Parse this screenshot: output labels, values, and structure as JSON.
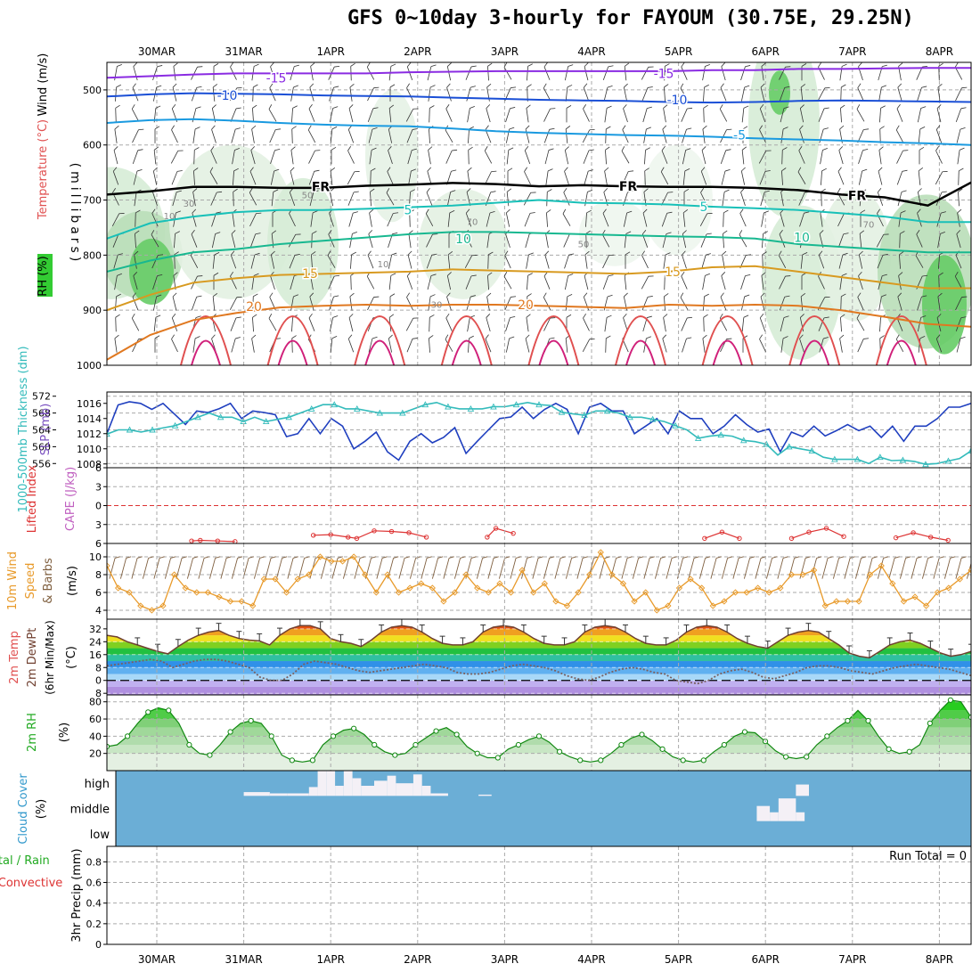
{
  "title": "GFS 0~10day 3-hourly for FAYOUM (30.75E, 29.25N)",
  "dates": [
    "30MAR",
    "31MAR",
    "1APR",
    "2APR",
    "3APR",
    "4APR",
    "5APR",
    "6APR",
    "7APR",
    "8APR"
  ],
  "colors": {
    "wind_rh_green": "#33cc33",
    "cloud_blue": "#6baed6",
    "slp": "#1f3fbf",
    "thickness": "#33bbbb",
    "li": "#dd3333",
    "wind10": "#e89a2a",
    "barb": "#806040",
    "rh2m": "#22cc22",
    "dew": "#7a6060"
  },
  "chart_data": [
    {
      "type": "contour",
      "panel": "upper-air",
      "ylabel_parts": [
        "RH (%)",
        "Temperature (°C)",
        "Wind (m/s)"
      ],
      "yaxis_label": "(millibars)",
      "yticks": [
        500,
        600,
        700,
        800,
        900,
        1000
      ],
      "ylim": [
        450,
        1000
      ],
      "isotherm_labels": [
        "-15",
        "-10",
        "-5",
        "FR",
        "5",
        "10",
        "15",
        "20"
      ],
      "rh_labels": [
        "10",
        "30",
        "50",
        "70"
      ],
      "isotherms": [
        {
          "label": "-15",
          "color": "#8a2be2",
          "p": [
            478,
            475,
            472,
            470,
            470,
            470,
            470,
            468,
            467,
            466,
            466,
            466,
            466,
            466,
            464,
            464,
            462,
            462,
            461,
            460,
            460
          ]
        },
        {
          "label": "-10",
          "color": "#1a4fd6",
          "p": [
            512,
            508,
            506,
            507,
            508,
            510,
            511,
            512,
            514,
            516,
            518,
            519,
            520,
            522,
            523,
            522,
            520,
            519,
            520,
            521,
            522
          ]
        },
        {
          "label": "-5",
          "color": "#1a9ae0",
          "p": [
            560,
            555,
            553,
            556,
            560,
            563,
            565,
            566,
            570,
            575,
            578,
            580,
            582,
            583,
            585,
            588,
            590,
            592,
            595,
            597,
            600
          ]
        },
        {
          "label": "FR",
          "color": "#000000",
          "p": [
            690,
            684,
            676,
            676,
            678,
            678,
            674,
            672,
            669,
            671,
            675,
            673,
            675,
            676,
            676,
            678,
            682,
            690,
            695,
            710,
            668
          ]
        },
        {
          "label": "5",
          "color": "#18c0b8",
          "p": [
            770,
            742,
            730,
            722,
            718,
            718,
            716,
            713,
            710,
            705,
            700,
            705,
            706,
            708,
            712,
            715,
            718,
            724,
            730,
            740,
            740
          ]
        },
        {
          "label": "10",
          "color": "#18b890",
          "p": [
            830,
            810,
            795,
            789,
            780,
            774,
            768,
            762,
            758,
            758,
            760,
            762,
            764,
            766,
            767,
            770,
            780,
            785,
            790,
            795,
            795
          ]
        },
        {
          "label": "15",
          "color": "#d89a20",
          "p": [
            900,
            872,
            850,
            842,
            836,
            834,
            832,
            830,
            826,
            828,
            830,
            832,
            834,
            830,
            822,
            820,
            830,
            840,
            850,
            860,
            860
          ]
        },
        {
          "label": "20",
          "color": "#e07820",
          "p": [
            990,
            945,
            918,
            905,
            895,
            892,
            890,
            892,
            890,
            890,
            892,
            894,
            896,
            890,
            892,
            890,
            892,
            900,
            912,
            925,
            930
          ]
        }
      ]
    },
    {
      "type": "line",
      "panel": "slp-thickness",
      "ylabel_parts": [
        "1000-500mb Thickness (dm)",
        "SLP (mb)"
      ],
      "left_yticks": [
        556,
        560,
        564,
        568,
        572
      ],
      "right_yticks": [
        1008,
        1010,
        1012,
        1014,
        1016
      ],
      "series": [
        {
          "name": "SLP (mb)",
          "axis": "right",
          "values": [
            1012,
            1015.8,
            1016.2,
            1016,
            1015.2,
            1016,
            1014.6,
            1013.2,
            1015,
            1014.8,
            1015.3,
            1016,
            1014,
            1015,
            1014.8,
            1014.5,
            1011.6,
            1012,
            1014,
            1012,
            1014,
            1013,
            1010,
            1011,
            1012.2,
            1009.6,
            1008.5,
            1011,
            1012,
            1010.8,
            1011.5,
            1012.8,
            1009.4,
            1011,
            1012.5,
            1014,
            1014.2,
            1015.5,
            1014,
            1015.2,
            1016,
            1015.2,
            1012,
            1015.5,
            1016,
            1015,
            1015,
            1012,
            1013,
            1014,
            1012,
            1015,
            1014,
            1014,
            1012,
            1013,
            1014.5,
            1013.2,
            1012.2,
            1012.6,
            1009.6,
            1012.2,
            1011.6,
            1013,
            1011.7,
            1012.4,
            1013.2,
            1012.4,
            1013,
            1011.5,
            1013,
            1011,
            1013,
            1013,
            1014,
            1015.5,
            1015.5,
            1016
          ]
        },
        {
          "name": "1000-500mb Thickness (dm)",
          "axis": "left",
          "values": [
            563,
            564,
            564,
            563.5,
            564,
            564.5,
            565,
            566,
            567,
            568,
            567,
            567,
            566,
            567,
            566,
            566.5,
            567,
            568,
            569,
            570,
            570,
            569,
            569,
            568.5,
            568,
            568,
            568,
            569,
            570,
            570.5,
            569.5,
            569,
            569,
            569,
            569.5,
            569.5,
            570,
            570.5,
            570,
            569.8,
            568.2,
            567.8,
            567.5,
            568.5,
            568.5,
            568,
            567,
            567,
            566.5,
            566,
            565,
            564,
            562,
            562.5,
            562.8,
            562.5,
            561.5,
            561.2,
            560.6,
            558,
            560,
            559.5,
            559,
            557.5,
            557,
            557,
            557,
            556,
            557.5,
            556.7,
            556.8,
            556.5,
            555.8,
            556,
            556.6,
            557.2,
            559
          ]
        }
      ]
    },
    {
      "type": "line",
      "panel": "lifted-index-cape",
      "ylabel_parts": [
        "Lifted Index",
        "CAPE (J/kg)"
      ],
      "yticks": [
        -6,
        -3,
        0,
        3,
        6
      ],
      "reference_line": 0,
      "series": [
        {
          "name": "Lifted Index",
          "segments": [
            [
              [
                0.9,
                5.6
              ],
              [
                1.0,
                5.5
              ],
              [
                1.2,
                5.6
              ],
              [
                1.4,
                5.7
              ]
            ],
            [
              [
                2.3,
                4.7
              ],
              [
                2.5,
                4.6
              ],
              [
                2.7,
                5.0
              ],
              [
                2.8,
                5.2
              ],
              [
                3.0,
                4.0
              ],
              [
                3.2,
                4.1
              ],
              [
                3.4,
                4.3
              ],
              [
                3.6,
                5.0
              ]
            ],
            [
              [
                4.3,
                5.0
              ],
              [
                4.4,
                3.6
              ],
              [
                4.6,
                4.4
              ]
            ],
            [
              [
                6.8,
                5.2
              ],
              [
                7.0,
                4.2
              ],
              [
                7.2,
                5.2
              ]
            ],
            [
              [
                7.8,
                5.2
              ],
              [
                8.0,
                4.2
              ],
              [
                8.2,
                3.6
              ],
              [
                8.4,
                4.9
              ]
            ],
            [
              [
                9.0,
                5.1
              ],
              [
                9.2,
                4.3
              ],
              [
                9.4,
                5.0
              ],
              [
                9.6,
                5.5
              ]
            ]
          ]
        }
      ]
    },
    {
      "type": "line",
      "panel": "10m-wind",
      "ylabel_parts": [
        "10m Wind",
        "Speed",
        "& Barbs",
        "(m/s)"
      ],
      "yticks": [
        4,
        6,
        8,
        10
      ],
      "series": [
        {
          "name": "10m Wind Speed",
          "values": [
            9,
            6.5,
            6,
            4.5,
            4,
            4.5,
            8,
            6.5,
            6,
            6,
            5.5,
            5,
            5,
            4.5,
            7.5,
            7.5,
            6,
            7.5,
            8,
            10,
            9.5,
            9.5,
            10,
            8,
            6,
            8,
            6,
            6.5,
            7,
            6.5,
            5,
            6,
            8,
            6.5,
            6,
            7,
            6,
            8.5,
            6,
            7,
            5,
            4.5,
            6,
            8,
            10.5,
            8,
            7,
            5,
            6,
            4,
            4.5,
            6.5,
            7.5,
            6.5,
            4.5,
            5,
            6,
            6,
            6.5,
            6,
            6.5,
            8,
            8,
            8.5,
            4.5,
            5,
            5,
            5,
            8,
            9,
            7,
            5,
            5.5,
            4.5,
            6,
            6.5,
            7.5,
            8.5
          ]
        }
      ]
    },
    {
      "type": "line",
      "panel": "2m-temp",
      "ylabel_parts": [
        "2m Temp",
        "2m DewPt",
        "(6hr Min/Max)",
        "(°C)"
      ],
      "yticks": [
        -8,
        0,
        8,
        16,
        24,
        32
      ],
      "series": [
        {
          "name": "2m Temp",
          "values": [
            28,
            27,
            24,
            22,
            20,
            18,
            16.5,
            21,
            25,
            28,
            30,
            31,
            28,
            26,
            25,
            24.5,
            22,
            28,
            32,
            34,
            34,
            32,
            26,
            24,
            23,
            21,
            25,
            30,
            33,
            34,
            33,
            30,
            26,
            23,
            22,
            22,
            24,
            30,
            33,
            34,
            33,
            30,
            26,
            23,
            22,
            22,
            24,
            30,
            33,
            34,
            33,
            30,
            26,
            23,
            22,
            22,
            25,
            30,
            33,
            34,
            33,
            30,
            26,
            23,
            21,
            20,
            24,
            28,
            30,
            31,
            30,
            26,
            22,
            17,
            15,
            14,
            18,
            22,
            24,
            25,
            23,
            20,
            17,
            15,
            16,
            18
          ]
        },
        {
          "name": "2m DewPt",
          "values": [
            9,
            10,
            11,
            12,
            13,
            12,
            8,
            10,
            12,
            13,
            13,
            12,
            10,
            8,
            2,
            0,
            0,
            4,
            10,
            12,
            11,
            10,
            8,
            6,
            5,
            6,
            7,
            8,
            9,
            10,
            9,
            8,
            5,
            4,
            4,
            5,
            7,
            9,
            10,
            9,
            8,
            6,
            3,
            1,
            0,
            2,
            5,
            7,
            8,
            7,
            5,
            4,
            0,
            -1,
            -2,
            0,
            4,
            6,
            7,
            5,
            2,
            1,
            3,
            5,
            8,
            9,
            9,
            8,
            6,
            5,
            4,
            6,
            8,
            9,
            10,
            9,
            8,
            7,
            5,
            3
          ]
        }
      ]
    },
    {
      "type": "area",
      "panel": "2m-rh",
      "ylabel_parts": [
        "2m RH",
        "(%)"
      ],
      "yticks": [
        20,
        40,
        60,
        80
      ],
      "series": [
        {
          "name": "2m RH",
          "values": [
            28,
            30,
            40,
            55,
            68,
            73,
            70,
            55,
            30,
            20,
            18,
            30,
            45,
            55,
            58,
            55,
            40,
            18,
            12,
            10,
            12,
            30,
            40,
            47,
            49,
            42,
            30,
            22,
            18,
            20,
            30,
            38,
            46,
            50,
            42,
            28,
            20,
            15,
            15,
            25,
            30,
            36,
            40,
            33,
            22,
            16,
            12,
            10,
            12,
            20,
            30,
            38,
            42,
            35,
            25,
            16,
            12,
            10,
            12,
            22,
            30,
            40,
            45,
            44,
            34,
            23,
            16,
            14,
            16,
            30,
            40,
            50,
            58,
            70,
            58,
            40,
            25,
            20,
            22,
            30,
            55,
            70,
            82,
            80,
            62
          ]
        }
      ]
    },
    {
      "type": "bar",
      "panel": "cloud-cover",
      "ylabel_parts": [
        "Cloud Cover",
        "(%)"
      ],
      "ytick_labels": [
        "high",
        "middle",
        "low"
      ],
      "series": [
        {
          "name": "high",
          "segments": [
            [
              1.5,
              1.8,
              0.15
            ],
            [
              1.8,
              2.0,
              0.1
            ],
            [
              2.0,
              2.25,
              0.1
            ],
            [
              2.25,
              2.35,
              0.35
            ],
            [
              2.35,
              2.45,
              1
            ],
            [
              2.45,
              2.55,
              1
            ],
            [
              2.55,
              2.65,
              0.4
            ],
            [
              2.65,
              2.75,
              1
            ],
            [
              2.75,
              2.85,
              0.7
            ],
            [
              2.85,
              3.0,
              0.4
            ],
            [
              3.0,
              3.15,
              0.6
            ],
            [
              3.15,
              3.25,
              0.8
            ],
            [
              3.25,
              3.45,
              0.5
            ],
            [
              3.45,
              3.55,
              0.85
            ],
            [
              3.55,
              3.65,
              0.4
            ],
            [
              3.65,
              3.85,
              0.1
            ],
            [
              4.2,
              4.35,
              0.05
            ],
            [
              7.85,
              8.0,
              0.45
            ]
          ]
        },
        {
          "name": "middle",
          "segments": [
            [
              7.4,
              7.55,
              0.6
            ],
            [
              7.55,
              7.65,
              0.35
            ],
            [
              7.65,
              7.85,
              0.9
            ],
            [
              7.85,
              7.95,
              0.35
            ]
          ]
        }
      ]
    },
    {
      "type": "bar",
      "panel": "precip",
      "ylabel_parts": [
        "Total / Rain",
        "Convective",
        "3hr Precip (mm)"
      ],
      "yticks": [
        0,
        0.2,
        0.4,
        0.6,
        0.8
      ],
      "ylim": [
        0,
        0.95
      ],
      "run_total_label": "Run Total = 0",
      "series": []
    }
  ]
}
